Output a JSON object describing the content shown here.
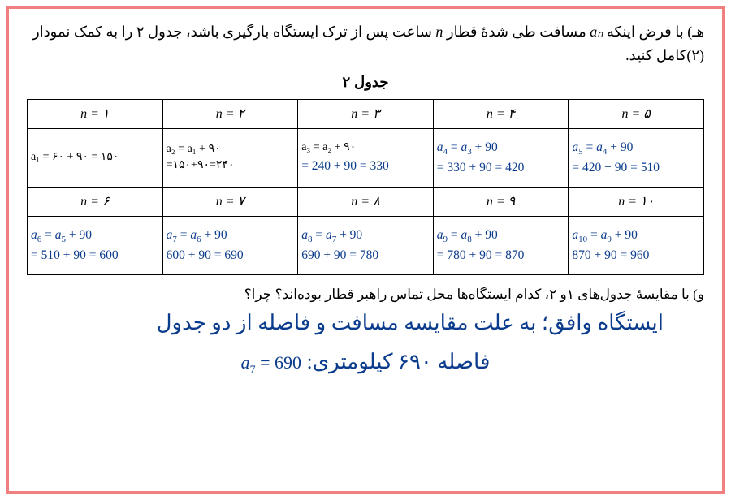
{
  "prompt_pre": "هـ) با فرض اینکه ",
  "prompt_var": "aₙ",
  "prompt_mid": " مسافت طی شدهٔ قطار ",
  "prompt_n": "n",
  "prompt_post": " ساعت پس از ترک ایستگاه بارگیری باشد، جدول ۲ را به کمک نمودار (۲)کامل کنید.",
  "table_title": "جدول ۲",
  "headers": {
    "h1": "n = ۱",
    "h2": "n = ۲",
    "h3": "n = ۳",
    "h4": "n = ۴",
    "h5": "n = ۵",
    "h6": "n = ۶",
    "h7": "n = ۷",
    "h8": "n = ۸",
    "h9": "n = ۹",
    "h10": "n = ۱۰"
  },
  "cells": {
    "c1": "a₁ = ۶۰ + ۹۰ = ۱۵۰",
    "c2_l1": "a₂ = a₁ + ۹۰",
    "c2_l2": "=۱۵۰+۹۰=۲۴۰",
    "c3_l1": "a₃ = a₂ + ۹۰",
    "c3_l2": "= 240 + 90 = 330",
    "c4_l1": "a₄ = a₃ + 90",
    "c4_l2": "= 330 + 90 = 420",
    "c5_l1": "a₅ = a₄ + 90",
    "c5_l2": "= 420 + 90 = 510",
    "c6_l1": "a₆ = a₅ + 90",
    "c6_l2": "= 510 + 90 = 600",
    "c7_l1": "a₇ = a₆ + 90",
    "c7_l2": "600 + 90 = 690",
    "c8_l1": "a₈ = a₇ + 90",
    "c8_l2": "690 + 90 = 780",
    "c9_l1": "a₉ = a₈ + 90",
    "c9_l2": "= 780 + 90 = 870",
    "c10_l1": "a₁₀ = a₉ + 90",
    "c10_l2": "870 + 90 = 960"
  },
  "q2": "و) با مقایسهٔ جدول‌های ۱و ۲، کدام ایستگاه‌ها محل تماس راهبر قطار بوده‌اند؟ چرا؟",
  "ans1": "ایستگاه وافق؛ به علت مقایسه مسافت و فاصله از دو جدول",
  "ans2_text": "فاصله ۶۹۰ کیلومتری: ",
  "ans2_math": "a₇ = 690",
  "colors": {
    "blue": "#0a3b8c",
    "border": "#f08080"
  }
}
